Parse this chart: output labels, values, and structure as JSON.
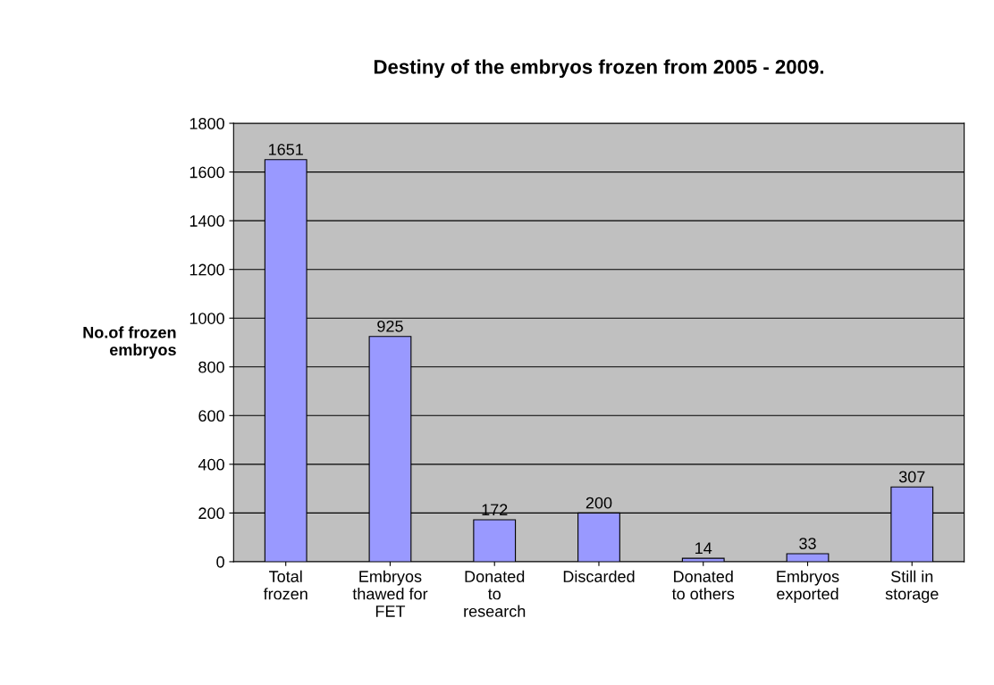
{
  "chart_data": {
    "type": "bar",
    "title": "Destiny of the embryos frozen from 2005 - 2009.",
    "ylabel": "No.of frozen\nembryos",
    "categories": [
      "Total\nfrozen",
      "Embryos\nthawed for\nFET",
      "Donated\nto\nresearch",
      "Discarded",
      "Donated\nto others",
      "Embryos\nexported",
      "Still in\nstorage"
    ],
    "values": [
      1651,
      925,
      172,
      200,
      14,
      33,
      307
    ],
    "color": "#9999ff",
    "ylim": [
      0,
      1800
    ],
    "yticks": [
      0,
      200,
      400,
      600,
      800,
      1000,
      1200,
      1400,
      1600,
      1800
    ],
    "grid": "y",
    "data_labels": true
  }
}
